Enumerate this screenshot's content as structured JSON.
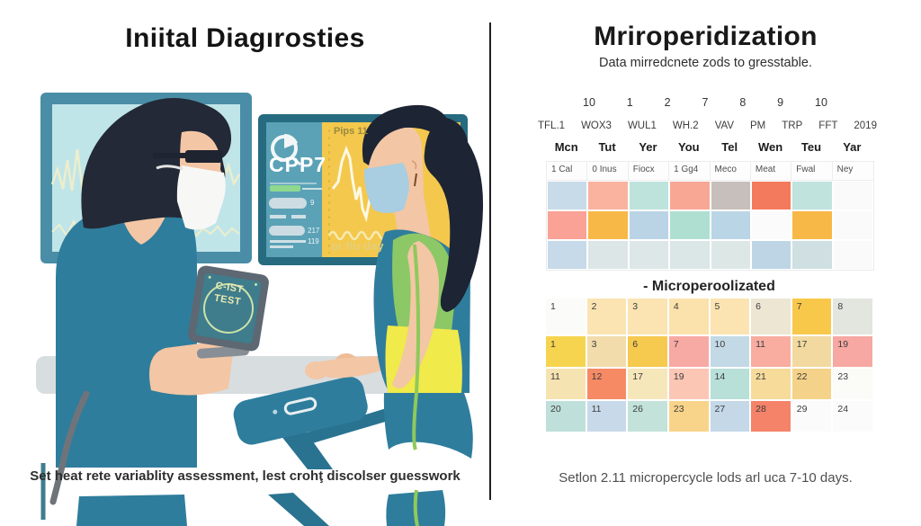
{
  "left_panel": {
    "title": "Iniital Diagırosties",
    "caption": "Set heat rete variablity assessment, lest crohţ discolser guesswork",
    "monitor": {
      "label": "CPP7",
      "chart_header": "Pips 11",
      "chart_footer": "or fiu day",
      "stats": [
        "9",
        "217",
        "119"
      ]
    },
    "tablet": {
      "line1": "C-IST",
      "line2": "TEST"
    }
  },
  "right_panel": {
    "title": "Mriroperidization",
    "subtitle": "Data mirredcnete zods to gresstable.",
    "caption": "Setlon 2.11 micropercycle lods arl uca 7-10 days.",
    "calendar_top": {
      "week_numbers": [
        "10",
        "1",
        "2",
        "7",
        "8",
        "9",
        "10"
      ],
      "column_labels": [
        "TFL.1",
        "WOX3",
        "WUL1",
        "WH.2",
        "VAV",
        "PM",
        "TRP",
        "FFT",
        "2019"
      ],
      "day_names": [
        "Mcn",
        "Tut",
        "Yer",
        "You",
        "Tel",
        "Wen",
        "Teu",
        "Yar"
      ],
      "sub_labels": [
        "1 Cal",
        "0 Inus",
        "Fiocx",
        "1 Gg4",
        "Meco",
        "Meat",
        "Fwal",
        "Ney"
      ],
      "color_rows": [
        [
          "#c8dbe9",
          "#f9b39f",
          "#bee3dc",
          "#f8a795",
          "#c6bfbb",
          "#f37a5c",
          "#c0e3de",
          "#fafafa"
        ],
        [
          "#f9a295",
          "#f7b847",
          "#bad4e5",
          "#aedfd1",
          "#bad5e5",
          "#fbfbfb",
          "#f7b847",
          "#fafafa"
        ],
        [
          "#c6dae9",
          "#dce6e6",
          "#dde7e7",
          "#dbe6e6",
          "#dde8e6",
          "#bdd5e5",
          "#cfdfe2",
          "#fafafa"
        ]
      ]
    },
    "calendar_bottom": {
      "label": "- Microperoolizated",
      "rows": [
        [
          {
            "n": "1",
            "c": "#fbfbf9"
          },
          {
            "n": "2",
            "c": "#fbe4b2"
          },
          {
            "n": "3",
            "c": "#fbe4b2"
          },
          {
            "n": "4",
            "c": "#fbe1ab"
          },
          {
            "n": "5",
            "c": "#fbe4b2"
          },
          {
            "n": "6",
            "c": "#ece6d3"
          },
          {
            "n": "7",
            "c": "#f8c84b"
          },
          {
            "n": "8",
            "c": "#e3e5df"
          }
        ],
        [
          {
            "n": "1",
            "c": "#f6d44f"
          },
          {
            "n": "3",
            "c": "#f2dcab"
          },
          {
            "n": "6",
            "c": "#f6c94f"
          },
          {
            "n": "7",
            "c": "#f7a9a4"
          },
          {
            "n": "10",
            "c": "#c3d9e6"
          },
          {
            "n": "11",
            "c": "#f8ada0"
          },
          {
            "n": "17",
            "c": "#f2d9a0"
          },
          {
            "n": "19",
            "c": "#f7a8a2"
          }
        ],
        [
          {
            "n": "11",
            "c": "#f5e3b2"
          },
          {
            "n": "12",
            "c": "#f58a64"
          },
          {
            "n": "17",
            "c": "#f6e7bb"
          },
          {
            "n": "19",
            "c": "#fbc6b4"
          },
          {
            "n": "14",
            "c": "#b8dfd8"
          },
          {
            "n": "21",
            "c": "#f6db9b"
          },
          {
            "n": "22",
            "c": "#f4d289"
          },
          {
            "n": "23",
            "c": "#fbfbf7"
          }
        ],
        [
          {
            "n": "20",
            "c": "#bfe0da"
          },
          {
            "n": "11",
            "c": "#c8daea"
          },
          {
            "n": "26",
            "c": "#c2e2da"
          },
          {
            "n": "23",
            "c": "#f8d48a"
          },
          {
            "n": "27",
            "c": "#c4d8e8"
          },
          {
            "n": "28",
            "c": "#f4836a"
          },
          {
            "n": "29",
            "c": "#fbfbfb"
          },
          {
            "n": "24",
            "c": "#fbfbfb"
          }
        ]
      ]
    }
  },
  "colors": {
    "scrubs_teal": "#2f7d9c",
    "monitor_yellow": "#f3c84d",
    "monitor_panel_blue": "#5ba2b7",
    "accent_coral": "#f4836a",
    "accent_amber": "#f8c84b"
  }
}
